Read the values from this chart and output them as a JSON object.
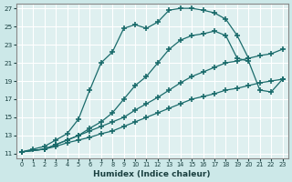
{
  "xlabel": "Humidex (Indice chaleur)",
  "bg_color": "#cce8e8",
  "plot_bg_color": "#dff0f0",
  "grid_color": "#ffffff",
  "line_color": "#1a6b6b",
  "xlim": [
    -0.5,
    23.5
  ],
  "ylim": [
    10.5,
    27.5
  ],
  "xticks": [
    0,
    1,
    2,
    3,
    4,
    5,
    6,
    7,
    8,
    9,
    10,
    11,
    12,
    13,
    14,
    15,
    16,
    17,
    18,
    19,
    20,
    21,
    22,
    23
  ],
  "yticks": [
    11,
    13,
    15,
    17,
    19,
    21,
    23,
    25,
    27
  ],
  "line1_x": [
    0,
    1,
    2,
    3,
    4,
    5,
    6,
    7,
    8,
    9,
    10,
    11,
    12,
    13,
    14,
    15,
    16,
    17,
    18,
    19,
    20
  ],
  "line1_y": [
    11.2,
    11.5,
    11.8,
    12.5,
    13.2,
    14.8,
    18.0,
    21.0,
    22.2,
    24.8,
    25.2,
    24.8,
    25.5,
    26.8,
    27.0,
    27.0,
    26.8,
    26.5,
    25.8,
    24.0,
    21.5
  ],
  "line2_x": [
    0,
    2,
    3,
    4,
    5,
    6,
    7,
    8,
    9,
    10,
    11,
    12,
    13,
    14,
    15,
    16,
    17,
    18,
    19,
    20,
    21,
    22,
    23
  ],
  "line2_y": [
    11.2,
    11.5,
    12.0,
    12.5,
    13.0,
    13.8,
    14.5,
    15.5,
    17.0,
    18.5,
    19.5,
    21.0,
    22.5,
    23.5,
    24.0,
    24.2,
    24.5,
    24.0,
    21.5,
    21.2,
    18.0,
    17.8,
    19.2
  ],
  "line3_x": [
    0,
    2,
    3,
    4,
    5,
    6,
    7,
    8,
    9,
    10,
    11,
    12,
    13,
    14,
    15,
    16,
    17,
    18,
    19,
    20,
    21,
    22,
    23
  ],
  "line3_y": [
    11.2,
    11.5,
    12.0,
    12.5,
    13.0,
    13.5,
    14.0,
    14.5,
    15.0,
    15.8,
    16.5,
    17.2,
    18.0,
    18.8,
    19.5,
    20.0,
    20.5,
    21.0,
    21.2,
    21.5,
    21.8,
    22.0,
    22.5
  ],
  "line4_x": [
    0,
    2,
    3,
    4,
    5,
    6,
    7,
    8,
    9,
    10,
    11,
    12,
    13,
    14,
    15,
    16,
    17,
    18,
    19,
    20,
    21,
    22,
    23
  ],
  "line4_y": [
    11.2,
    11.5,
    11.8,
    12.2,
    12.5,
    12.8,
    13.2,
    13.5,
    14.0,
    14.5,
    15.0,
    15.5,
    16.0,
    16.5,
    17.0,
    17.3,
    17.6,
    18.0,
    18.2,
    18.5,
    18.8,
    19.0,
    19.2
  ]
}
